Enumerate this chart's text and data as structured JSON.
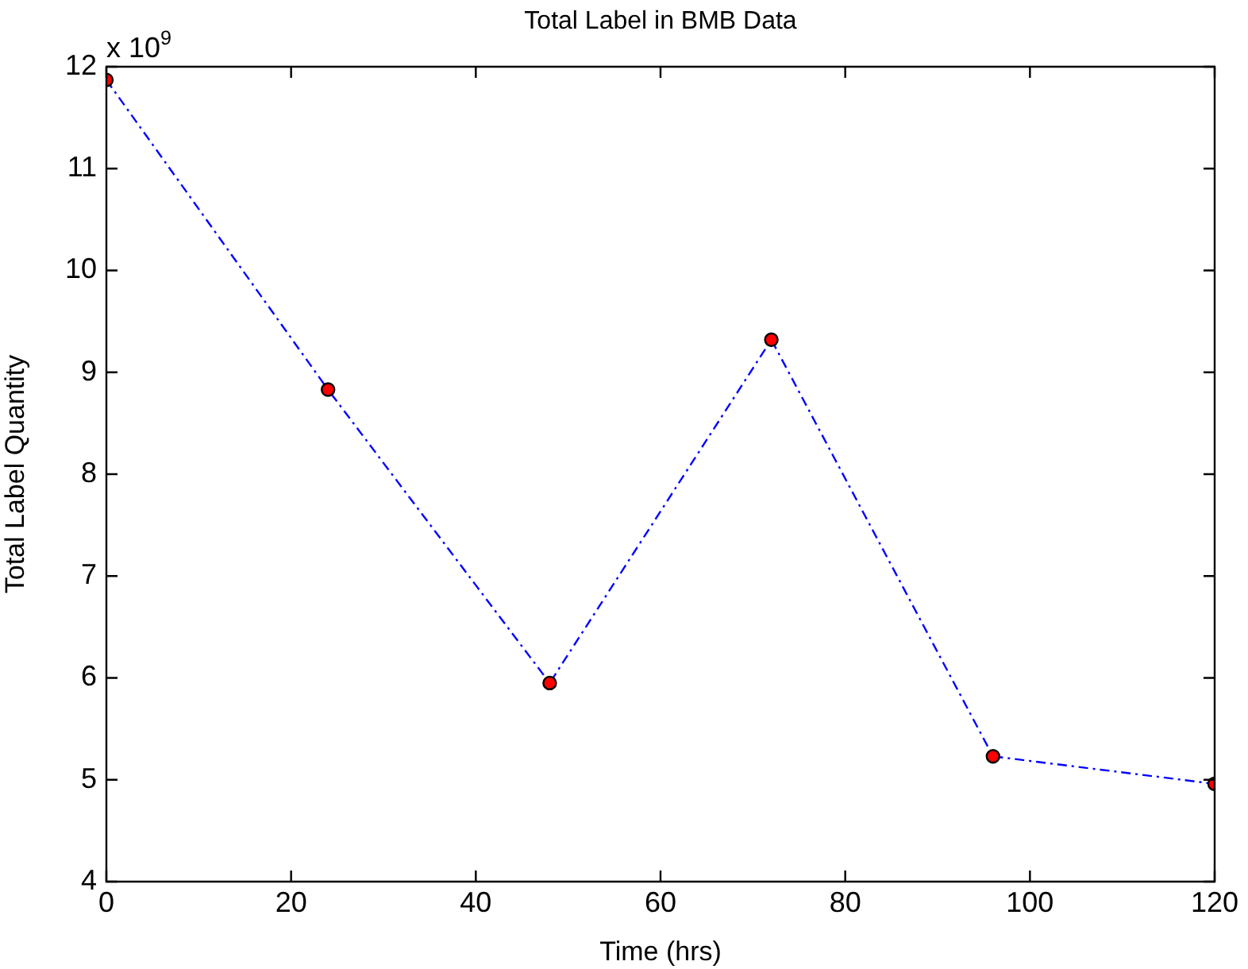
{
  "chart_data": {
    "type": "line",
    "title": "Total Label in BMB Data",
    "xlabel": "Time (hrs)",
    "ylabel": "Total Label Quantity",
    "x": [
      0,
      24,
      48,
      72,
      96,
      120
    ],
    "series": [
      {
        "color": "#0000ff",
        "values": [
          11.87,
          8.83,
          5.95,
          9.32,
          5.23,
          4.96
        ]
      }
    ],
    "xlim": [
      0,
      120
    ],
    "xticks": [
      0,
      20,
      40,
      60,
      80,
      100,
      120
    ],
    "ylim": [
      4,
      12
    ],
    "yticks": [
      4,
      5,
      6,
      7,
      8,
      9,
      10,
      11,
      12
    ],
    "annotations": [
      "x 10$^{9}$"
    ],
    "marker": "circle",
    "line_style": "dashed",
    "grid": false,
    "legend": false
  }
}
